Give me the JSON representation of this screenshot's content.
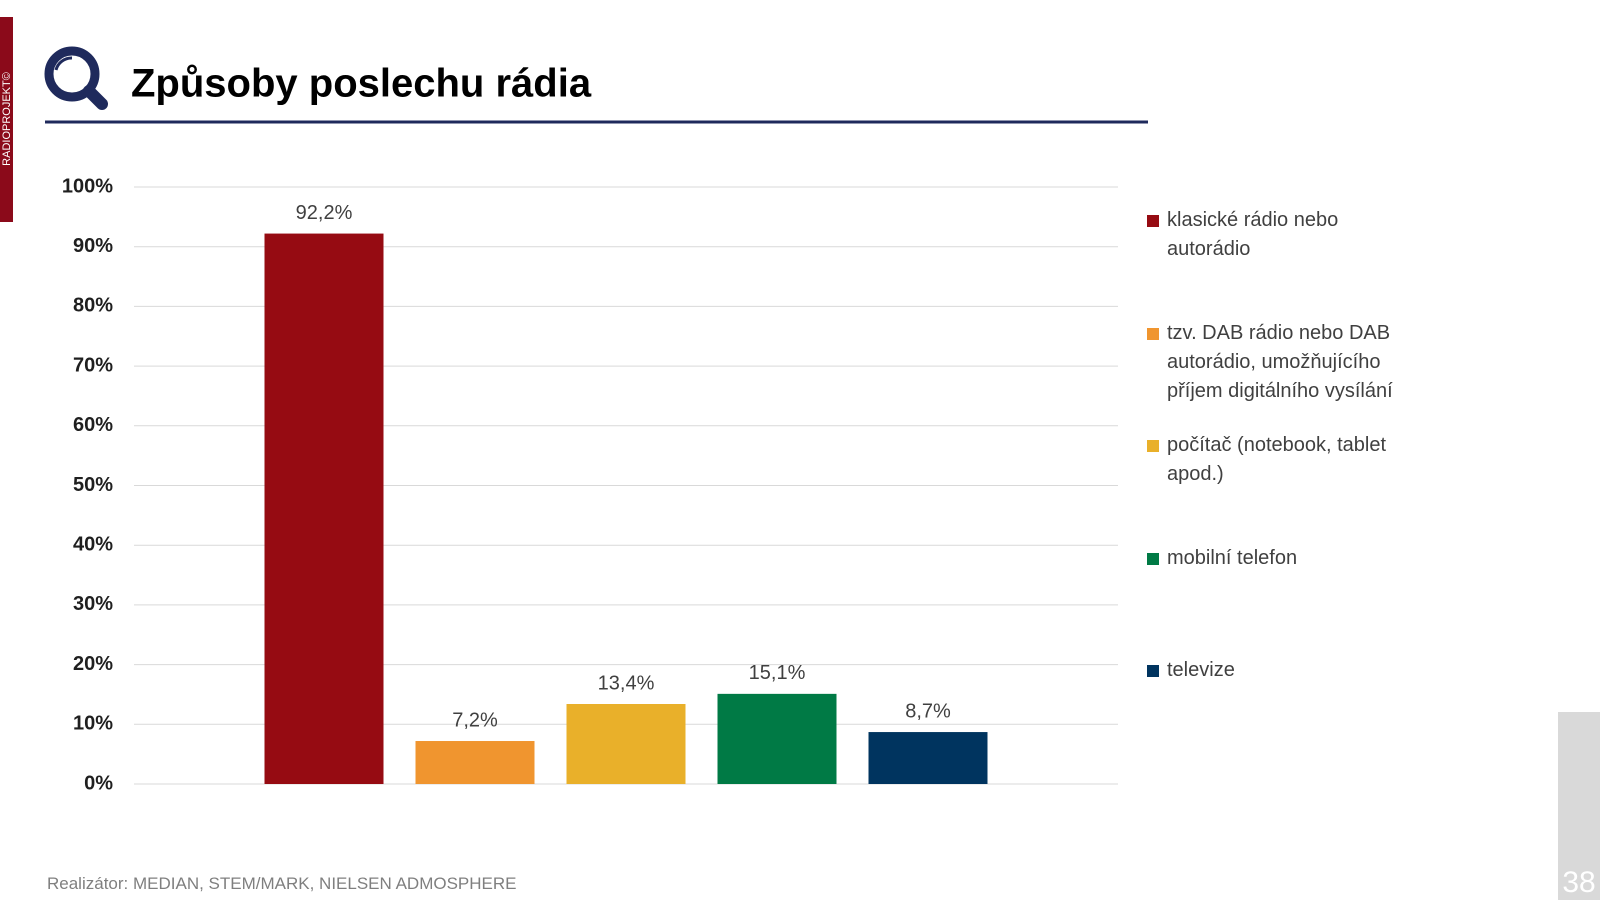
{
  "side_label": "RADIOPROJEKT©",
  "footer": "Realizátor: MEDIAN, STEM/MARK, NIELSEN ADMOSPHERE",
  "page_number": "38",
  "chart_data": {
    "type": "bar",
    "title": "Způsoby poslechu rádia",
    "categories": [
      null
    ],
    "series": [
      {
        "name": "klasické rádio nebo autorádio",
        "color": "#960b12",
        "values": [
          92.2
        ],
        "value_labels": [
          "92,2%"
        ]
      },
      {
        "name": "tzv. DAB rádio nebo DAB autorádio, umožňujícího příjem digitálního vysílání",
        "color": "#f0952f",
        "values": [
          7.2
        ],
        "value_labels": [
          "7,2%"
        ]
      },
      {
        "name": "počítač (notebook, tablet apod.)",
        "color": "#e9b02a",
        "values": [
          13.4
        ],
        "value_labels": [
          "13,4%"
        ]
      },
      {
        "name": "mobilní telefon",
        "color": "#007a45",
        "values": [
          15.1
        ],
        "value_labels": [
          "15,1%"
        ]
      },
      {
        "name": "televize",
        "color": "#00345f",
        "values": [
          8.7
        ],
        "value_labels": [
          "8,7%"
        ]
      }
    ],
    "ylim": [
      0,
      100
    ],
    "yticks": [
      {
        "value": 0,
        "label": "0%"
      },
      {
        "value": 10,
        "label": "10%"
      },
      {
        "value": 20,
        "label": "20%"
      },
      {
        "value": 30,
        "label": "30%"
      },
      {
        "value": 40,
        "label": "40%"
      },
      {
        "value": 50,
        "label": "50%"
      },
      {
        "value": 60,
        "label": "60%"
      },
      {
        "value": 70,
        "label": "70%"
      },
      {
        "value": 80,
        "label": "80%"
      },
      {
        "value": 90,
        "label": "90%"
      },
      {
        "value": 100,
        "label": "100%"
      }
    ],
    "grid": true,
    "legend": "right"
  }
}
